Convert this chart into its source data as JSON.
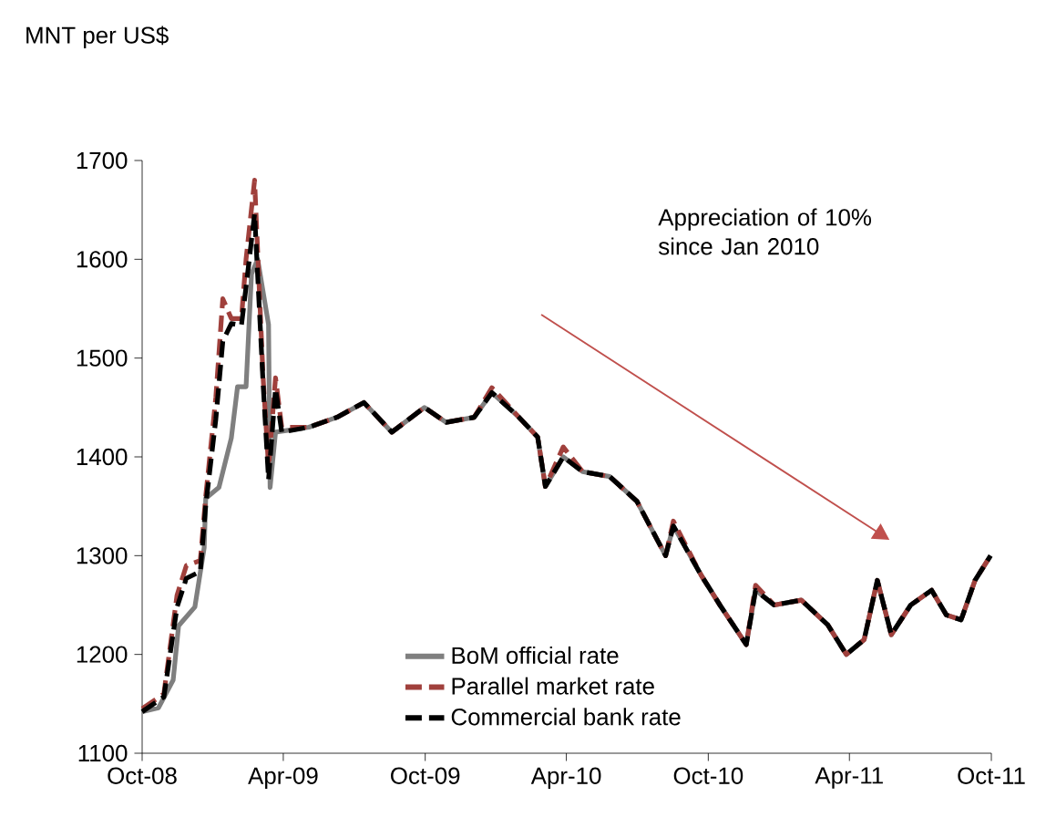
{
  "chart_data": {
    "type": "line",
    "ylabel": "MNT per US$",
    "xlim": [
      "2008-10-01",
      "2011-10-01"
    ],
    "xticks": [
      {
        "value": "2008-10-01",
        "label": "Oct-08"
      },
      {
        "value": "2009-04-01",
        "label": "Apr-09"
      },
      {
        "value": "2009-10-01",
        "label": "Oct-09"
      },
      {
        "value": "2010-04-01",
        "label": "Apr-10"
      },
      {
        "value": "2010-10-01",
        "label": "Oct-10"
      },
      {
        "value": "2011-04-01",
        "label": "Apr-11"
      },
      {
        "value": "2011-10-01",
        "label": "Oct-11"
      }
    ],
    "ylim": [
      1100,
      1700
    ],
    "yticks": [
      1100,
      1200,
      1300,
      1400,
      1500,
      1600,
      1700
    ],
    "grid": false,
    "legend": "bottom",
    "annotations": [
      "Appreciation of 10% since Jan 2010"
    ],
    "series": [
      {
        "name": "BoM official rate",
        "color": "#7f7f7f",
        "line_style": "solid",
        "x": [
          "2008-10-01",
          "2008-10-22",
          "2008-11-10",
          "2008-11-17",
          "2008-12-08",
          "2008-12-20",
          "2008-12-22",
          "2009-01-08",
          "2009-01-24",
          "2009-02-01",
          "2009-02-12",
          "2009-02-19",
          "2009-02-27",
          "2009-03-13",
          "2009-03-15",
          "2009-03-22",
          "2009-05-04",
          "2009-06-09",
          "2009-07-14",
          "2009-08-19",
          "2009-09-30",
          "2009-10-28",
          "2009-12-03",
          "2009-12-26",
          "2010-01-30",
          "2010-02-23",
          "2010-03-05",
          "2010-03-28",
          "2010-04-22",
          "2010-05-27",
          "2010-07-01",
          "2010-08-07",
          "2010-08-17",
          "2010-09-22",
          "2010-10-16",
          "2010-11-19",
          "2010-12-01",
          "2010-12-25",
          "2011-01-29",
          "2011-03-04",
          "2011-03-28",
          "2011-04-20",
          "2011-05-07",
          "2011-05-25",
          "2011-06-19",
          "2011-07-16",
          "2011-08-04",
          "2011-08-23",
          "2011-09-10",
          "2011-09-30"
        ],
        "values": [
          1142,
          1146,
          1174,
          1229,
          1248,
          1308,
          1358,
          1369,
          1419,
          1471,
          1471,
          1585,
          1600,
          1534,
          1369,
          1425,
          1430,
          1440,
          1455,
          1425,
          1450,
          1435,
          1440,
          1465,
          1440,
          1420,
          1370,
          1400,
          1385,
          1380,
          1355,
          1300,
          1330,
          1280,
          1250,
          1210,
          1265,
          1250,
          1255,
          1230,
          1200,
          1215,
          1275,
          1220,
          1250,
          1265,
          1240,
          1235,
          1275,
          1300
        ]
      },
      {
        "name": "Parallel market rate",
        "color": "#a0403c",
        "line_style": "dashed",
        "x": [
          "2008-10-01",
          "2008-10-29",
          "2008-11-15",
          "2008-11-27",
          "2008-12-15",
          "2008-12-22",
          "2009-01-04",
          "2009-01-13",
          "2009-01-24",
          "2009-02-06",
          "2009-02-12",
          "2009-02-23",
          "2009-03-06",
          "2009-03-13",
          "2009-03-22",
          "2009-03-30",
          "2009-05-04",
          "2009-06-09",
          "2009-07-14",
          "2009-08-19",
          "2009-09-30",
          "2009-10-28",
          "2009-12-03",
          "2009-12-26",
          "2010-01-30",
          "2010-02-23",
          "2010-03-05",
          "2010-03-28",
          "2010-04-22",
          "2010-05-27",
          "2010-07-01",
          "2010-08-07",
          "2010-08-17",
          "2010-09-22",
          "2010-10-16",
          "2010-11-19",
          "2010-12-01",
          "2010-12-25",
          "2011-01-29",
          "2011-03-04",
          "2011-03-28",
          "2011-04-20",
          "2011-05-07",
          "2011-05-25",
          "2011-06-19",
          "2011-07-16",
          "2011-08-04",
          "2011-08-23",
          "2011-09-10",
          "2011-09-30"
        ],
        "values": [
          1145,
          1160,
          1260,
          1290,
          1295,
          1360,
          1460,
          1560,
          1540,
          1540,
          1600,
          1680,
          1480,
          1390,
          1480,
          1430,
          1430,
          1440,
          1455,
          1425,
          1450,
          1435,
          1440,
          1470,
          1440,
          1420,
          1370,
          1410,
          1385,
          1380,
          1355,
          1300,
          1335,
          1280,
          1250,
          1210,
          1270,
          1250,
          1255,
          1230,
          1200,
          1215,
          1275,
          1220,
          1250,
          1265,
          1240,
          1235,
          1275,
          1300
        ]
      },
      {
        "name": "Commercial bank rate",
        "color": "#000000",
        "line_style": "dashed",
        "x": [
          "2008-10-01",
          "2008-10-29",
          "2008-11-15",
          "2008-11-27",
          "2008-12-15",
          "2008-12-22",
          "2009-01-04",
          "2009-01-13",
          "2009-01-24",
          "2009-02-06",
          "2009-02-12",
          "2009-02-23",
          "2009-03-06",
          "2009-03-13",
          "2009-03-22",
          "2009-03-30",
          "2009-05-04",
          "2009-06-09",
          "2009-07-14",
          "2009-08-19",
          "2009-09-30",
          "2009-10-28",
          "2009-12-03",
          "2009-12-26",
          "2010-01-30",
          "2010-02-23",
          "2010-03-05",
          "2010-03-28",
          "2010-04-22",
          "2010-05-27",
          "2010-07-01",
          "2010-08-07",
          "2010-08-17",
          "2010-09-22",
          "2010-10-16",
          "2010-11-19",
          "2010-12-01",
          "2010-12-25",
          "2011-01-29",
          "2011-03-04",
          "2011-03-28",
          "2011-04-20",
          "2011-05-07",
          "2011-05-25",
          "2011-06-19",
          "2011-07-16",
          "2011-08-04",
          "2011-08-23",
          "2011-09-10",
          "2011-09-30"
        ],
        "values": [
          1142,
          1157,
          1248,
          1277,
          1284,
          1351,
          1438,
          1517,
          1535,
          1533,
          1572,
          1646,
          1474,
          1377,
          1469,
          1425,
          1430,
          1440,
          1455,
          1425,
          1450,
          1435,
          1440,
          1465,
          1440,
          1420,
          1370,
          1400,
          1385,
          1380,
          1355,
          1300,
          1330,
          1280,
          1250,
          1210,
          1265,
          1250,
          1255,
          1230,
          1200,
          1215,
          1275,
          1220,
          1250,
          1265,
          1240,
          1235,
          1275,
          1300
        ]
      }
    ]
  }
}
